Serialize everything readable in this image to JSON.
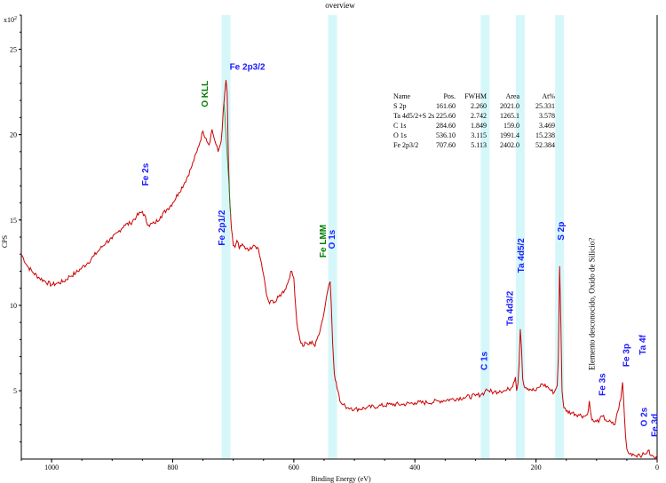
{
  "chart_data": {
    "type": "line",
    "title": "overview",
    "xlabel": "Binding Energy (eV)",
    "ylabel": "CPS",
    "y_multiplier_label": "x10",
    "y_multiplier_exp": "2",
    "xlim": [
      1050,
      0
    ],
    "ylim": [
      1,
      27
    ],
    "x_ticks": [
      1000,
      800,
      600,
      400,
      200,
      0
    ],
    "y_ticks": [
      5,
      10,
      15,
      20,
      25
    ],
    "grid": false,
    "line_color": "#cc0000",
    "highlight_color": "#d6f7fa",
    "highlight_bands": [
      712,
      536,
      284,
      226,
      161
    ],
    "series": [
      {
        "x": [
          1050,
          1040,
          1030,
          1020,
          1010,
          1000,
          990,
          980,
          970,
          960,
          950,
          940,
          930,
          920,
          910,
          900,
          890,
          880,
          870,
          860,
          850,
          840,
          830,
          820,
          810,
          800,
          790,
          780,
          770,
          760,
          750,
          745,
          740,
          735,
          730,
          725,
          720,
          715,
          712,
          710,
          708,
          706,
          703,
          700,
          697,
          694,
          690,
          685,
          680,
          675,
          670,
          665,
          660,
          655,
          650,
          645,
          640,
          635,
          630,
          625,
          620,
          615,
          610,
          605,
          600,
          595,
          590,
          585,
          580,
          575,
          570,
          565,
          560,
          555,
          550,
          546,
          542,
          540,
          538,
          536,
          533,
          530,
          527,
          524,
          520,
          515,
          510,
          505,
          500,
          480,
          460,
          440,
          420,
          400,
          380,
          360,
          340,
          320,
          300,
          290,
          285,
          282,
          278,
          270,
          260,
          250,
          245,
          240,
          237,
          234,
          232,
          230,
          228,
          226,
          224,
          222,
          220,
          210,
          200,
          195,
          190,
          180,
          175,
          170,
          165,
          163,
          161,
          159,
          157,
          154,
          150,
          140,
          130,
          120,
          115,
          112,
          110,
          108,
          105,
          100,
          95,
          90,
          85,
          80,
          75,
          70,
          65,
          60,
          57,
          54,
          52,
          50,
          48,
          45,
          40,
          35,
          30,
          25,
          20,
          15,
          10,
          5,
          0
        ],
        "y": [
          13.0,
          12.3,
          11.9,
          11.6,
          11.4,
          11.2,
          11.3,
          11.4,
          11.7,
          11.9,
          12.2,
          12.5,
          12.9,
          13.3,
          13.7,
          13.9,
          14.3,
          14.7,
          14.8,
          15.2,
          15.5,
          14.7,
          14.8,
          15.2,
          15.6,
          16.0,
          16.6,
          17.2,
          18.0,
          19.0,
          20.2,
          19.8,
          19.4,
          20.3,
          19.6,
          19.0,
          19.6,
          22.0,
          23.2,
          22.5,
          18.5,
          16.2,
          14.5,
          13.5,
          13.4,
          13.8,
          13.3,
          13.6,
          13.3,
          13.2,
          13.3,
          13.5,
          13.4,
          12.7,
          11.8,
          10.6,
          10.1,
          10.3,
          10.2,
          10.5,
          10.7,
          10.9,
          11.3,
          12.0,
          11.6,
          9.0,
          8.0,
          7.6,
          7.8,
          7.7,
          7.9,
          7.6,
          8.2,
          8.8,
          9.6,
          10.5,
          11.2,
          11.4,
          10.0,
          7.9,
          6.0,
          5.5,
          5.0,
          4.4,
          4.2,
          4.1,
          4.0,
          4.0,
          3.9,
          4.0,
          4.1,
          4.2,
          4.2,
          4.3,
          4.3,
          4.4,
          4.5,
          4.6,
          4.7,
          4.8,
          4.9,
          5.1,
          5.0,
          4.9,
          5.0,
          5.0,
          5.1,
          5.2,
          5.5,
          5.8,
          5.0,
          5.4,
          6.5,
          8.6,
          7.5,
          5.7,
          5.3,
          5.1,
          5.0,
          5.2,
          5.4,
          5.2,
          5.0,
          4.9,
          5.3,
          7.0,
          12.3,
          9.0,
          5.0,
          4.0,
          3.8,
          3.7,
          3.6,
          3.5,
          3.6,
          4.4,
          3.8,
          3.3,
          3.2,
          3.2,
          3.3,
          3.5,
          3.3,
          3.2,
          3.1,
          3.0,
          3.8,
          4.5,
          5.5,
          3.5,
          2.3,
          1.6,
          1.4,
          1.3,
          1.3,
          1.2,
          1.3,
          1.2,
          1.3,
          1.5,
          1.2,
          1.1,
          1.0
        ]
      }
    ],
    "legend_table": {
      "headers": [
        "Name",
        "Pos.",
        "FWHM",
        "Area",
        "At%"
      ],
      "rows": [
        [
          "S 2p",
          "161.60",
          "2.260",
          "2021.0",
          "25.331"
        ],
        [
          "Ta 4d5/2+S 2s",
          "225.60",
          "2.742",
          "1265.1",
          "3.578"
        ],
        [
          "C 1s",
          "284.60",
          "1.849",
          "159.0",
          "3.469"
        ],
        [
          "O 1s",
          "536.10",
          "3.115",
          "1991.4",
          "15.238"
        ],
        [
          "Fe 2p3/2",
          "707.60",
          "5.113",
          "2402.0",
          "52.384"
        ]
      ]
    },
    "annotations": [
      {
        "text": "Fe 2p3/2",
        "x": 706,
        "y": 23.8,
        "color": "#1a1aff",
        "rotate": false
      },
      {
        "text": "O KLL",
        "x": 748,
        "y": 21.6,
        "color": "#008000",
        "rotate": true
      },
      {
        "text": "Fe 2s",
        "x": 846,
        "y": 17.0,
        "color": "#1a1aff",
        "rotate": true
      },
      {
        "text": "Fe 2p1/2",
        "x": 720,
        "y": 13.5,
        "color": "#1a1aff",
        "rotate": true
      },
      {
        "text": "Fe LMM",
        "x": 553,
        "y": 12.8,
        "color": "#008000",
        "rotate": true
      },
      {
        "text": "O 1s",
        "x": 538,
        "y": 13.3,
        "color": "#1a1aff",
        "rotate": true
      },
      {
        "text": "C 1s",
        "x": 287,
        "y": 6.2,
        "color": "#1a1aff",
        "rotate": true
      },
      {
        "text": "Ta 4d3/2",
        "x": 244,
        "y": 8.8,
        "color": "#1a1aff",
        "rotate": true
      },
      {
        "text": "Ta 4d5/2",
        "x": 226,
        "y": 11.9,
        "color": "#1a1aff",
        "rotate": true
      },
      {
        "text": "S 2p",
        "x": 160,
        "y": 13.8,
        "color": "#1a1aff",
        "rotate": true
      },
      {
        "text": "Elemento desconocido, Oxido de Silicio?",
        "x": 109,
        "y": 6.2,
        "color": "#000000",
        "rotate": true
      },
      {
        "text": "Fe 3s",
        "x": 92,
        "y": 4.7,
        "color": "#1a1aff",
        "rotate": true
      },
      {
        "text": "Fe 3p",
        "x": 52,
        "y": 6.4,
        "color": "#1a1aff",
        "rotate": true
      },
      {
        "text": "Ta 4f",
        "x": 25,
        "y": 7.1,
        "color": "#1a1aff",
        "rotate": true
      },
      {
        "text": "O 2s",
        "x": 23,
        "y": 2.9,
        "color": "#1a1aff",
        "rotate": true
      },
      {
        "text": "Fe 3d",
        "x": 5,
        "y": 2.3,
        "color": "#1a1aff",
        "rotate": true
      }
    ]
  }
}
